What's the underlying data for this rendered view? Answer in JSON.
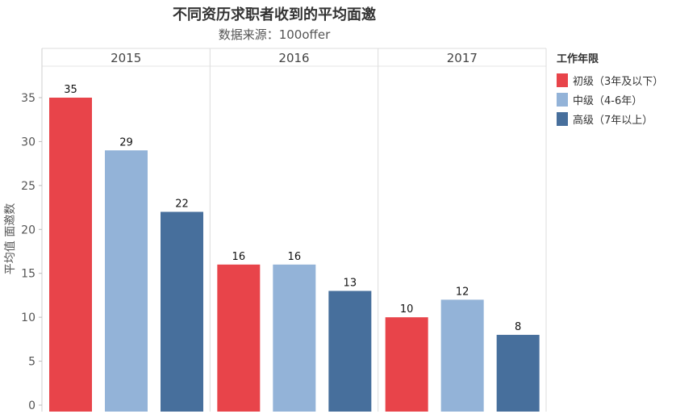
{
  "chart_data": {
    "type": "bar",
    "title": "不同资历求职者收到的平均面邀",
    "subtitle": "数据来源：100offer",
    "ylabel": "平均值 面邀数",
    "xlabel": "",
    "ylim": [
      0,
      38
    ],
    "yticks": [
      0,
      5,
      10,
      15,
      20,
      25,
      30,
      35
    ],
    "categories": [
      "2015",
      "2016",
      "2017"
    ],
    "legend_title": "工作年限",
    "legend_position": "right",
    "series": [
      {
        "name": "初级（3年及以下）",
        "color": "#e8444a",
        "values": [
          35,
          16,
          10
        ]
      },
      {
        "name": "中级（4-6年）",
        "color": "#93b3d8",
        "values": [
          29,
          16,
          12
        ]
      },
      {
        "name": "高级（7年以上）",
        "color": "#476f9c",
        "values": [
          22,
          13,
          8
        ]
      }
    ],
    "data_labels": [
      [
        "35",
        "16",
        "10"
      ],
      [
        "29",
        "16",
        "12"
      ],
      [
        "22",
        "13",
        "8"
      ]
    ]
  }
}
